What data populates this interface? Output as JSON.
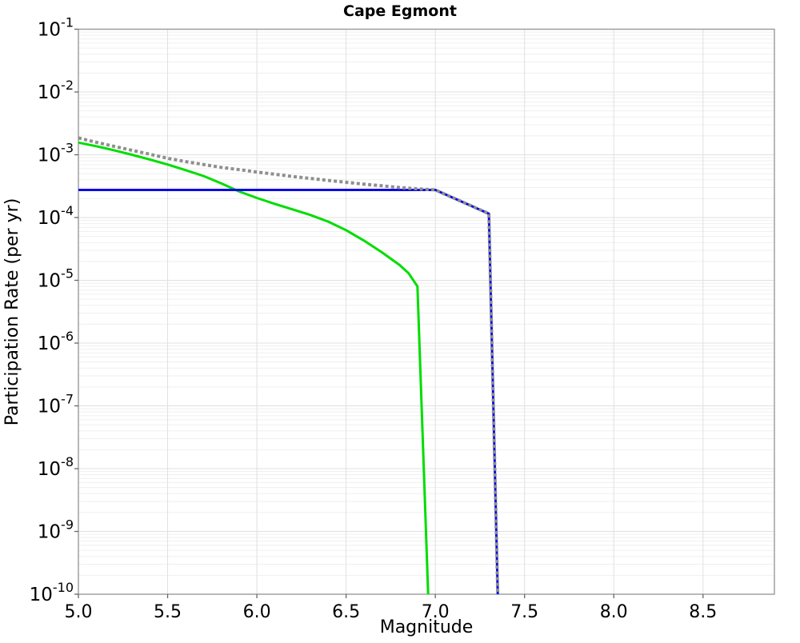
{
  "chart_data": {
    "type": "line",
    "title": "Cape Egmont",
    "xlabel": "Magnitude",
    "ylabel": "Participation Rate (per yr)",
    "legend": "none",
    "grid": {
      "major": true,
      "minor": true
    },
    "x_axis": {
      "scale": "linear",
      "min": 5.0,
      "max": 8.9,
      "ticks": [
        5.0,
        5.5,
        6.0,
        6.5,
        7.0,
        7.5,
        8.0,
        8.5
      ],
      "tick_labels": [
        "5.0",
        "5.5",
        "6.0",
        "6.5",
        "7.0",
        "7.5",
        "8.0",
        "8.5"
      ]
    },
    "y_axis": {
      "scale": "log",
      "min_exp": -10,
      "max_exp": -1,
      "tick_exponents": [
        -1,
        -2,
        -3,
        -4,
        -5,
        -6,
        -7,
        -8,
        -9,
        -10
      ],
      "tick_labels": [
        "10^-1",
        "10^-2",
        "10^-3",
        "10^-4",
        "10^-5",
        "10^-6",
        "10^-7",
        "10^-8",
        "10^-9",
        "10^-10"
      ]
    },
    "colors": {
      "green_line": "#00dd00",
      "blue_line": "#0a0ae6",
      "gray_dotted_line": "#8f8f8f",
      "grid_major": "#e0e0e0",
      "grid_minor": "#efefef",
      "axis_frame": "#999999",
      "tick_mark": "#666666"
    },
    "series": [
      {
        "name": "green-solid",
        "color": "#00dd00",
        "line_style": "solid",
        "line_width": 3,
        "points": [
          [
            5.0,
            0.00156
          ],
          [
            5.1,
            0.00137
          ],
          [
            5.2,
            0.00118
          ],
          [
            5.3,
            0.001
          ],
          [
            5.4,
            0.00084
          ],
          [
            5.5,
            0.0007
          ],
          [
            5.6,
            0.00057
          ],
          [
            5.7,
            0.00046
          ],
          [
            5.8,
            0.00035
          ],
          [
            5.9,
            0.00026
          ],
          [
            6.0,
            0.000205
          ],
          [
            6.1,
            0.000165
          ],
          [
            6.2,
            0.000135
          ],
          [
            6.3,
            0.00011
          ],
          [
            6.4,
            8.6e-05
          ],
          [
            6.5,
            6.3e-05
          ],
          [
            6.6,
            4.3e-05
          ],
          [
            6.7,
            2.8e-05
          ],
          [
            6.8,
            1.75e-05
          ],
          [
            6.85,
            1.3e-05
          ],
          [
            6.9,
            8e-06
          ],
          [
            6.96,
            1e-10
          ]
        ]
      },
      {
        "name": "blue-solid",
        "color": "#0a0ae6",
        "line_style": "solid",
        "line_width": 3,
        "points": [
          [
            5.0,
            0.000275
          ],
          [
            7.0,
            0.000275
          ],
          [
            7.3,
            0.000115
          ],
          [
            7.35,
            1e-10
          ]
        ]
      },
      {
        "name": "gray-dotted",
        "color": "#8f8f8f",
        "line_style": "dotted",
        "line_width": 4,
        "points": [
          [
            5.0,
            0.00185
          ],
          [
            5.1,
            0.00158
          ],
          [
            5.2,
            0.00136
          ],
          [
            5.3,
            0.00118
          ],
          [
            5.4,
            0.00102
          ],
          [
            5.5,
            0.00088
          ],
          [
            5.6,
            0.00078
          ],
          [
            5.7,
            0.0007
          ],
          [
            5.8,
            0.00063
          ],
          [
            5.9,
            0.00058
          ],
          [
            6.0,
            0.00053
          ],
          [
            6.1,
            0.00049
          ],
          [
            6.2,
            0.00045
          ],
          [
            6.3,
            0.00042
          ],
          [
            6.4,
            0.00039
          ],
          [
            6.5,
            0.000365
          ],
          [
            6.6,
            0.00034
          ],
          [
            6.7,
            0.00032
          ],
          [
            6.8,
            0.0003
          ],
          [
            6.9,
            0.000287
          ],
          [
            7.0,
            0.000275
          ],
          [
            7.3,
            0.000115
          ],
          [
            7.35,
            1e-10
          ]
        ]
      }
    ]
  }
}
